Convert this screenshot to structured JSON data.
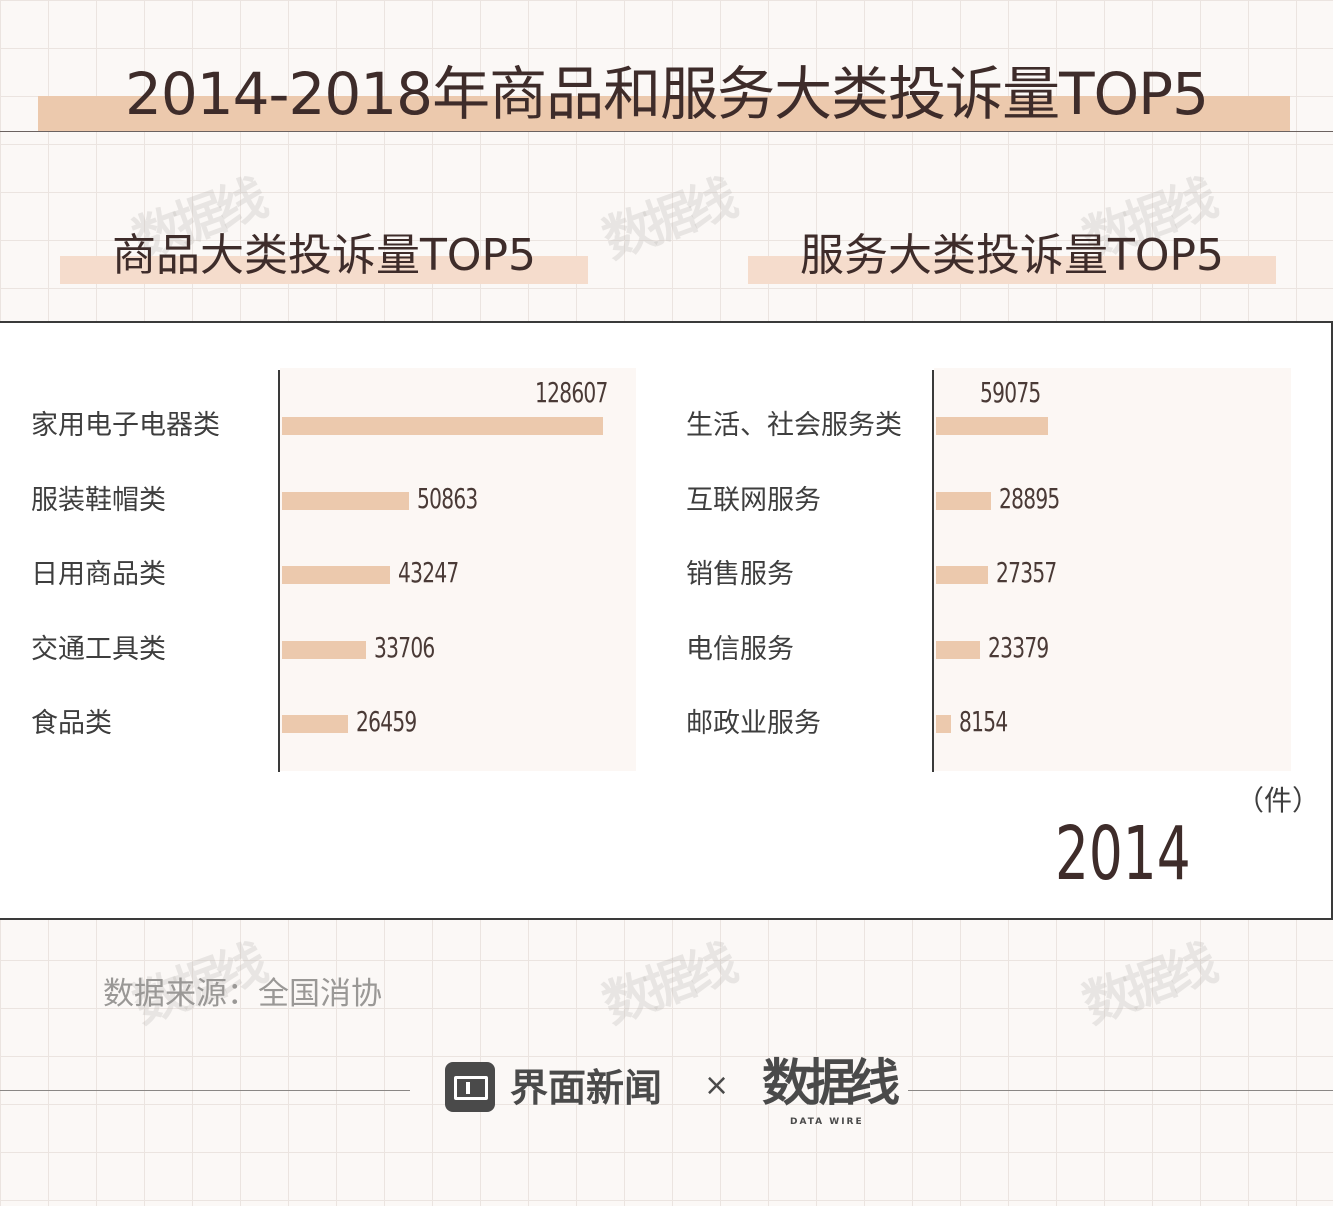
{
  "title": "2014-2018年商品和服务大类投诉量TOP5",
  "source": "数据来源：全国消协",
  "unit": "（件）",
  "year": "2014",
  "footer": {
    "brand1": "界面新闻",
    "separator": "×",
    "brand2": "数据线",
    "brand2_sub": "DATA WIRE"
  },
  "watermark": "数据线",
  "chart_data": [
    {
      "type": "bar",
      "orientation": "horizontal",
      "title": "商品大类投诉量TOP5",
      "categories": [
        "家用电子电器类",
        "服装鞋帽类",
        "日用商品类",
        "交通工具类",
        "食品类"
      ],
      "values": [
        128607,
        50863,
        43247,
        33706,
        26459
      ],
      "xlim": [
        0,
        128607
      ],
      "grid": false,
      "color": "#ecc9ad"
    },
    {
      "type": "bar",
      "orientation": "horizontal",
      "title": "服务大类投诉量TOP5",
      "categories": [
        "生活、社会服务类",
        "互联网服务",
        "销售服务",
        "电信服务",
        "邮政业服务"
      ],
      "values": [
        59075,
        28895,
        27357,
        23379,
        8154
      ],
      "xlim": [
        0,
        59075
      ],
      "grid": false,
      "color": "#ecc9ad"
    }
  ]
}
